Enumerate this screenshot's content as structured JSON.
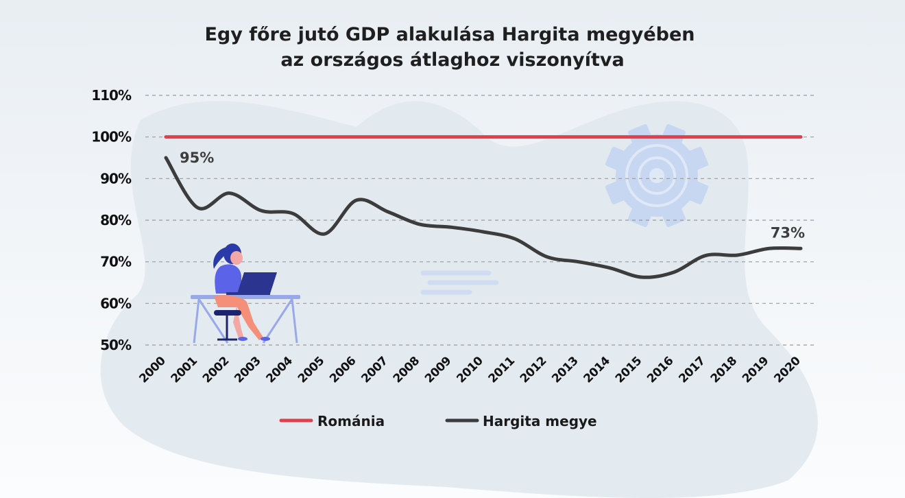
{
  "chart_data": {
    "type": "line",
    "title_lines": [
      "Egy főre jutó GDP alakulása Hargita megyében",
      "az országos átlaghoz viszonyítva"
    ],
    "x": [
      "2000",
      "2001",
      "2002",
      "2003",
      "2004",
      "2005",
      "2006",
      "2007",
      "2008",
      "2009",
      "2010",
      "2011",
      "2012",
      "2013",
      "2014",
      "2015",
      "2016",
      "2017",
      "2018",
      "2019",
      "2020"
    ],
    "y_ticks": [
      "50%",
      "60%",
      "70%",
      "80%",
      "90%",
      "100%",
      "110%"
    ],
    "ylim": [
      50,
      110
    ],
    "grid": true,
    "legend_position": "bottom",
    "series": [
      {
        "name": "Románia",
        "color": "#e0404a",
        "values": [
          100,
          100,
          100,
          100,
          100,
          100,
          100,
          100,
          100,
          100,
          100,
          100,
          100,
          100,
          100,
          100,
          100,
          100,
          100,
          100,
          100
        ]
      },
      {
        "name": "Hargita megye",
        "color": "#3c3c3c",
        "values": [
          95,
          83,
          86.5,
          82.3,
          81.6,
          76.7,
          84.8,
          82,
          79,
          78.3,
          77.2,
          75.5,
          71.2,
          70,
          68.5,
          66.3,
          67.5,
          71.5,
          71.6,
          73.2,
          73.2
        ]
      }
    ],
    "annotations": [
      {
        "series": "Hargita megye",
        "index": 0,
        "text": "95%"
      },
      {
        "series": "Hargita megye",
        "index": 20,
        "text": "73%"
      }
    ]
  },
  "decor": {
    "gear_icon": "gear-icon",
    "illustration": "woman-at-laptop-illustration",
    "blob_color": "#dde6ec",
    "gear_color": "#c3d3f0"
  }
}
